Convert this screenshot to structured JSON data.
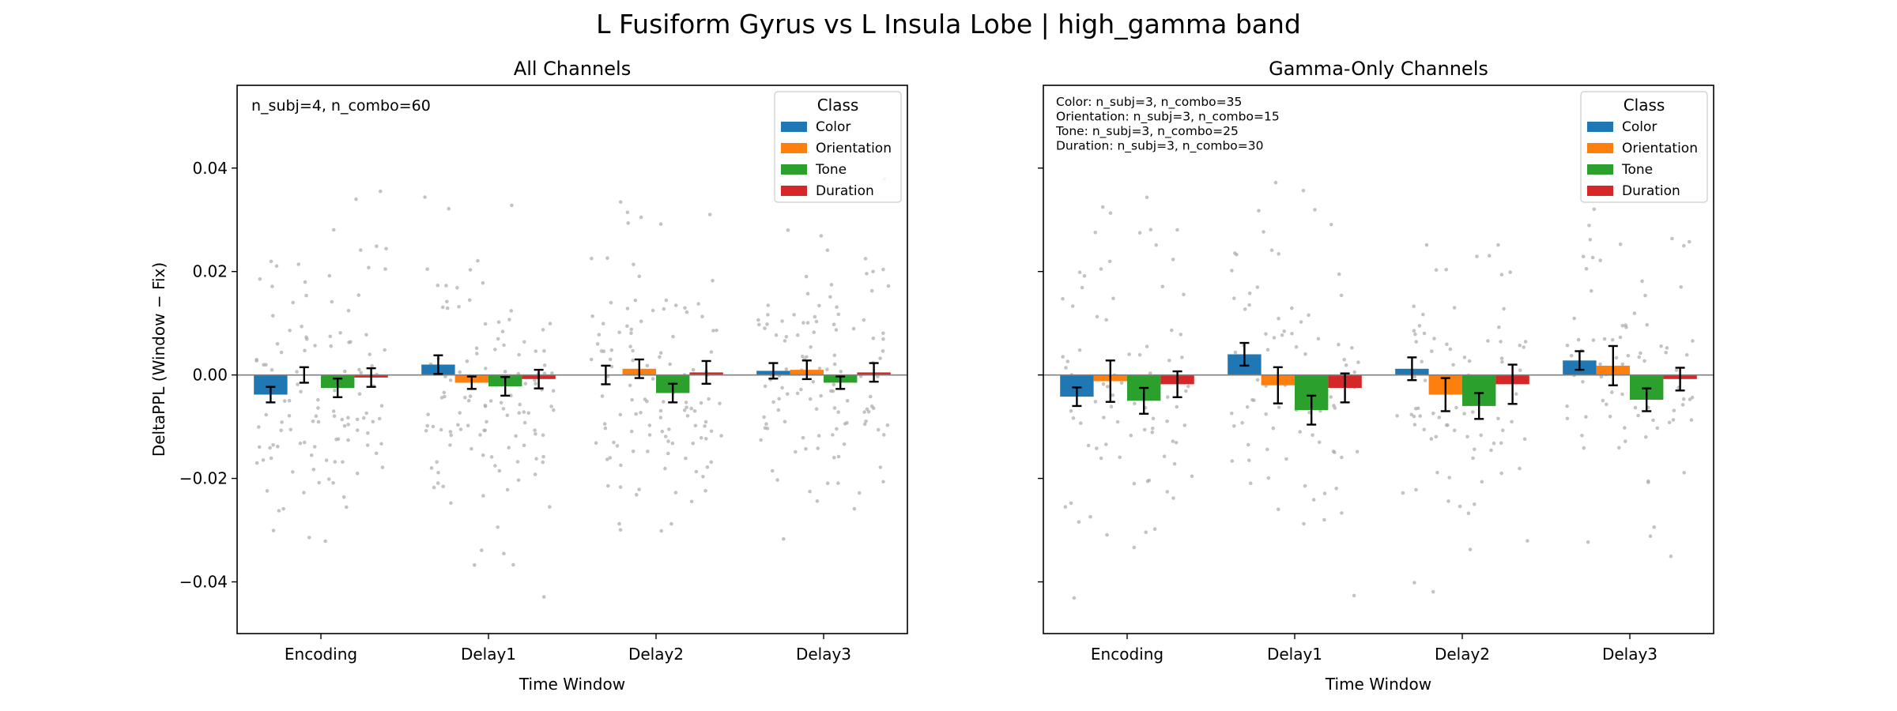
{
  "figure": {
    "title": "L Fusiform Gyrus vs L Insula Lobe  |  high_gamma band"
  },
  "colors": {
    "Color": "#1f77b4",
    "Orientation": "#ff7f0e",
    "Tone": "#2ca02c",
    "Duration": "#d62728",
    "points": "#aaaaaa",
    "zero_line": "#808080"
  },
  "chart_data": [
    {
      "type": "bar",
      "title": "All Channels",
      "xlabel": "Time Window",
      "ylabel": "DeltaPPL (Window − Fix)",
      "categories": [
        "Encoding",
        "Delay1",
        "Delay2",
        "Delay3"
      ],
      "ylim": [
        -0.05,
        0.056
      ],
      "yticks": [
        -0.04,
        -0.02,
        0.0,
        0.02,
        0.04
      ],
      "ytick_labels": [
        "−0.04",
        "−0.02",
        "0.00",
        "0.02",
        "0.04"
      ],
      "show_ytick_labels": true,
      "grid": false,
      "legend": {
        "title": "Class",
        "placement": "top-right"
      },
      "annotation": [
        "n_subj=4, n_combo=60"
      ],
      "annotation_size": "large",
      "series": [
        {
          "name": "Color",
          "values": [
            -0.0038,
            0.002,
            0.0,
            0.0008
          ],
          "errors": [
            0.0015,
            0.0018,
            0.0018,
            0.0015
          ]
        },
        {
          "name": "Orientation",
          "values": [
            0.0,
            -0.0015,
            0.0012,
            0.001
          ],
          "errors": [
            0.0015,
            0.0012,
            0.0018,
            0.0018
          ]
        },
        {
          "name": "Tone",
          "values": [
            -0.0025,
            -0.0022,
            -0.0035,
            -0.0015
          ],
          "errors": [
            0.0018,
            0.0018,
            0.0018,
            0.0012
          ]
        },
        {
          "name": "Duration",
          "values": [
            -0.0005,
            -0.0008,
            0.0005,
            0.0005
          ],
          "errors": [
            0.0018,
            0.0018,
            0.0022,
            0.0018
          ]
        }
      ],
      "scatter_seed": 11,
      "scatter_per_bar": 30,
      "scatter_sd": 0.014
    },
    {
      "type": "bar",
      "title": "Gamma-Only Channels",
      "xlabel": "Time Window",
      "ylabel": "",
      "categories": [
        "Encoding",
        "Delay1",
        "Delay2",
        "Delay3"
      ],
      "ylim": [
        -0.05,
        0.056
      ],
      "yticks": [
        -0.04,
        -0.02,
        0.0,
        0.02,
        0.04
      ],
      "ytick_labels": [
        "",
        "",
        "",
        "",
        ""
      ],
      "show_ytick_labels": false,
      "grid": false,
      "legend": {
        "title": "Class",
        "placement": "top-right"
      },
      "annotation": [
        "Color: n_subj=3, n_combo=35",
        "Orientation: n_subj=3, n_combo=15",
        "Tone: n_subj=3, n_combo=25",
        "Duration: n_subj=3, n_combo=30"
      ],
      "annotation_size": "small",
      "series": [
        {
          "name": "Color",
          "values": [
            -0.0042,
            0.004,
            0.0012,
            0.0028
          ],
          "errors": [
            0.0018,
            0.0022,
            0.0022,
            0.0018
          ]
        },
        {
          "name": "Orientation",
          "values": [
            -0.0012,
            -0.002,
            -0.0038,
            0.0018
          ],
          "errors": [
            0.004,
            0.0035,
            0.0032,
            0.0038
          ]
        },
        {
          "name": "Tone",
          "values": [
            -0.005,
            -0.0068,
            -0.006,
            -0.0048
          ],
          "errors": [
            0.0025,
            0.0028,
            0.0025,
            0.0022
          ]
        },
        {
          "name": "Duration",
          "values": [
            -0.0018,
            -0.0025,
            -0.0018,
            -0.0008
          ],
          "errors": [
            0.0025,
            0.0028,
            0.0038,
            0.0022
          ]
        }
      ],
      "scatter_seed": 29,
      "scatter_per_bar": 22,
      "scatter_sd": 0.015
    }
  ]
}
